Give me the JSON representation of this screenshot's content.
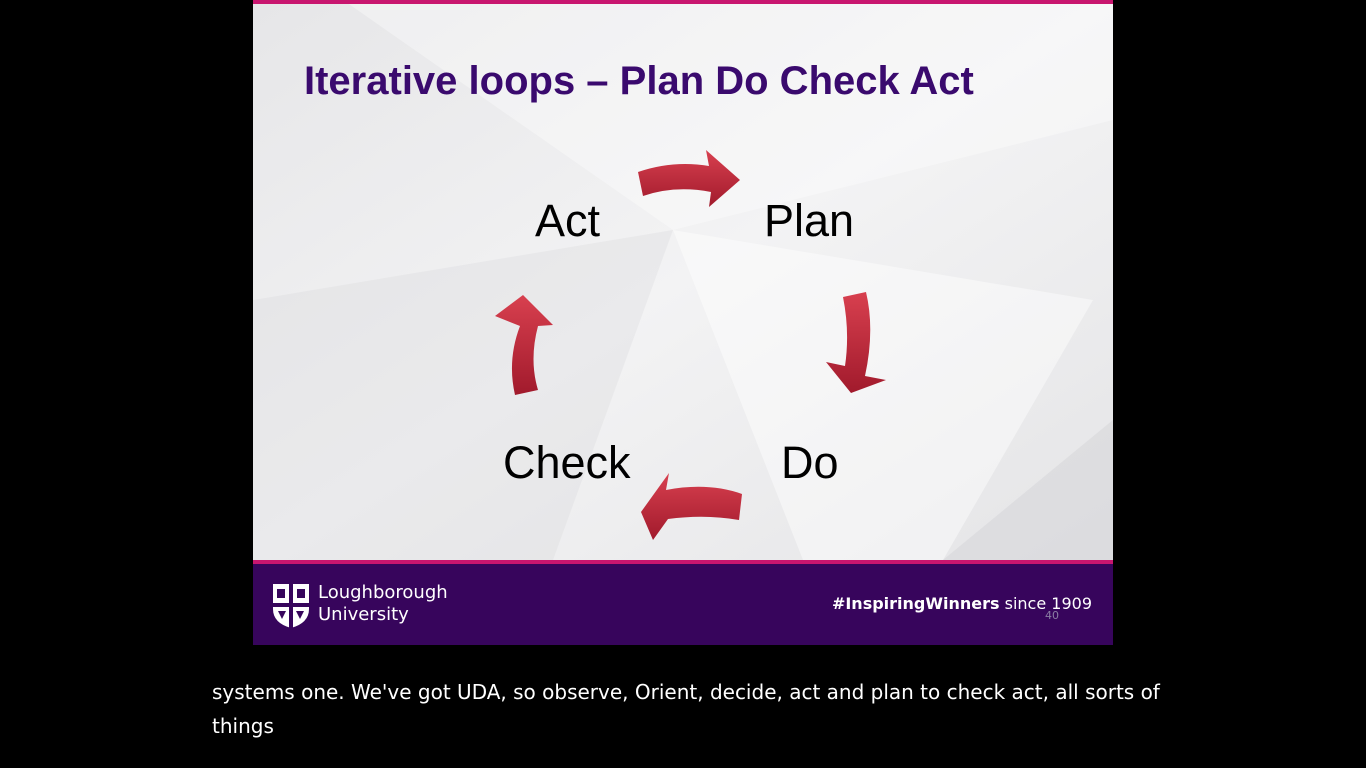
{
  "slide": {
    "title": "Iterative loops – Plan Do Check Act",
    "cycle": {
      "plan": "Plan",
      "do": "Do",
      "check": "Check",
      "act": "Act"
    },
    "footer": {
      "university_line1": "Loughborough",
      "university_line2": "University",
      "hashtag": "#InspiringWinners",
      "since": " since 1909",
      "page_number": "40"
    },
    "colors": {
      "title": "#3a0a6e",
      "accent_rule": "#c8166f",
      "footer_bg": "#37055c",
      "arrow": "#c0283a"
    }
  },
  "caption": {
    "text": "systems one. We've got UDA, so observe, Orient, decide, act and plan to check act, all sorts of things"
  }
}
